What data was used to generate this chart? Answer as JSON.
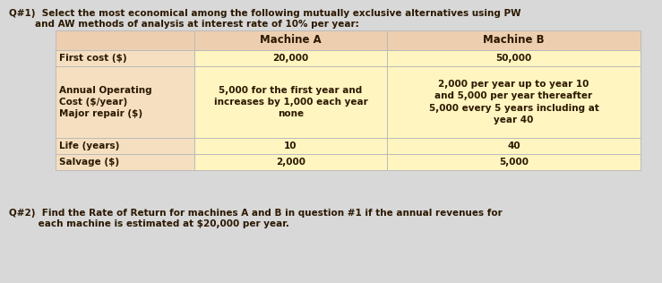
{
  "q1_line1": "Q#1)  Select the most economical among the following mutually exclusive alternatives using PW",
  "q1_line2": "        and AW methods of analysis at interest rate of 10% per year:",
  "q2_line1": "Q#2)  Find the Rate of Return for machines A and B in question #1 if the annual revenues for",
  "q2_line2": "         each machine is estimated at $20,000 per year.",
  "header_col0": "",
  "header_col1": "Machine A",
  "header_col2": "Machine B",
  "row1_col0": "First cost ($)",
  "row1_col1": "20,000",
  "row1_col2": "50,000",
  "row2_col0": "Annual Operating\nCost ($/year)\nMajor repair ($)",
  "row2_col1": "5,000 for the first year and\nincreases by 1,000 each year\nnone",
  "row2_col2": "2,000 per year up to year 10\nand 5,000 per year thereafter\n5,000 every 5 years including at\nyear 40",
  "row3_col0": "Life (years)",
  "row3_col1": "10",
  "row3_col2": "40",
  "row4_col0": "Salvage ($)",
  "row4_col1": "2,000",
  "row4_col2": "5,000",
  "bg_color": "#D8D8D8",
  "header_bg": "#EDCFB0",
  "row_label_bg": "#F5DFC0",
  "row_data_bg": "#FFF5C0",
  "border_color": "#BBBBBB",
  "text_color": "#2B1800",
  "font_size": 7.5,
  "header_font_size": 8.5
}
